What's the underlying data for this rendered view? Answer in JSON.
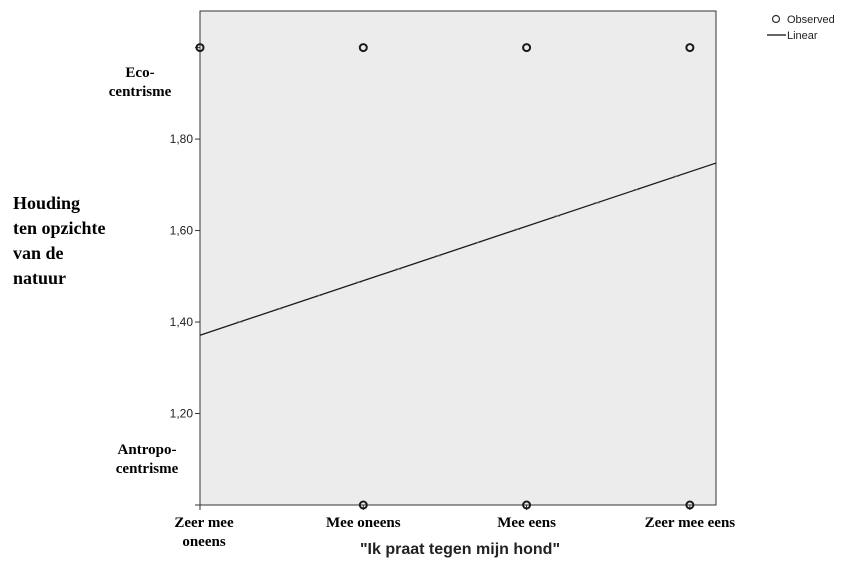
{
  "chart_data": {
    "type": "scatter",
    "xlabel": "\"Ik praat tegen mijn hond\"",
    "ylabel_lines": [
      "Houding",
      "ten opzichte",
      "van de",
      "natuur"
    ],
    "categories": [
      {
        "lines": [
          "Zeer mee",
          "oneens"
        ]
      },
      {
        "lines": [
          "Mee oneens"
        ]
      },
      {
        "lines": [
          "Mee eens"
        ]
      },
      {
        "lines": [
          "Zeer mee eens"
        ]
      }
    ],
    "x_ticks": [
      1,
      2,
      3,
      4
    ],
    "xlim": [
      1,
      4.16
    ],
    "ylim": [
      1.0,
      2.08
    ],
    "y_ticks": [
      {
        "value": 1.2,
        "label": "1,20"
      },
      {
        "value": 1.4,
        "label": "1,40"
      },
      {
        "value": 1.6,
        "label": "1,60"
      },
      {
        "value": 1.8,
        "label": "1,80"
      }
    ],
    "y_category_labels": [
      {
        "value": 1.0,
        "lines": [
          "Antropo-",
          "centrisme"
        ]
      },
      {
        "value": 2.0,
        "lines": [
          "Eco-",
          "centrisme"
        ]
      }
    ],
    "observed": [
      {
        "x": 1,
        "y": 2.0
      },
      {
        "x": 2,
        "y": 2.0
      },
      {
        "x": 2,
        "y": 1.0
      },
      {
        "x": 3,
        "y": 2.0
      },
      {
        "x": 3,
        "y": 1.0
      },
      {
        "x": 4,
        "y": 2.0
      },
      {
        "x": 4,
        "y": 1.0
      }
    ],
    "linear_fit": {
      "intercept": 1.2521,
      "slope": 0.1191
    },
    "legend": [
      {
        "label": "Observed",
        "marker": "circle"
      },
      {
        "label": "Linear",
        "marker": "line"
      }
    ],
    "legend_position": "top-right",
    "grid": false,
    "colors": {
      "plot_background": "#ececec",
      "marker": "#1a1a1a",
      "line": "#1a1a1a"
    }
  }
}
